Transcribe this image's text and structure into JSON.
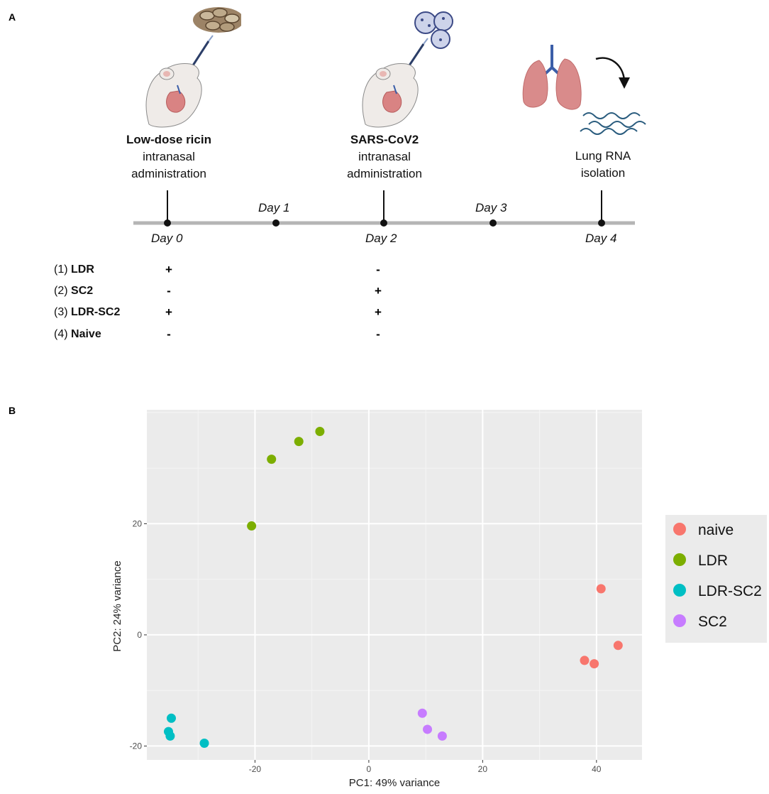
{
  "panel_a": {
    "label": "A",
    "steps": [
      {
        "title": "Low-dose ricin",
        "line1": "intranasal",
        "line2": "administration"
      },
      {
        "title": "SARS-CoV2",
        "line1": "intranasal",
        "line2": "administration"
      },
      {
        "title": "",
        "line1": "Lung RNA",
        "line2": "isolation"
      }
    ],
    "days": [
      "Day 0",
      "Day 1",
      "Day 2",
      "Day 3",
      "Day 4"
    ],
    "groups": [
      {
        "num": "(1)",
        "name": "LDR",
        "day0": "+",
        "day2": "-"
      },
      {
        "num": "(2)",
        "name": "SC2",
        "day0": "-",
        "day2": "+"
      },
      {
        "num": "(3)",
        "name": "LDR-SC2",
        "day0": "+",
        "day2": "+"
      },
      {
        "num": "(4)",
        "name": "Naive",
        "day0": "-",
        "day2": "-"
      }
    ],
    "illustrations": [
      "castor-beans",
      "mouse-intranasal",
      "sars-cov2-virions",
      "lungs",
      "rna-strands",
      "curved-arrow"
    ]
  },
  "panel_b": {
    "label": "B"
  },
  "chart_data": {
    "type": "scatter",
    "title": "",
    "xlabel": "PC1: 49% variance",
    "ylabel": "PC2: 24% variance",
    "xlim": [
      -39,
      48
    ],
    "ylim": [
      -22.5,
      40.5
    ],
    "xticks": [
      -20,
      0,
      20,
      40
    ],
    "yticks": [
      -20,
      0,
      20
    ],
    "grid": true,
    "legend_position": "right",
    "series": [
      {
        "name": "naive",
        "color": "#F8766D",
        "points": [
          [
            40.8,
            8.3
          ],
          [
            43.8,
            -1.9
          ],
          [
            37.9,
            -4.6
          ],
          [
            39.6,
            -5.2
          ]
        ]
      },
      {
        "name": "LDR",
        "color": "#7CAE00",
        "points": [
          [
            -8.6,
            36.6
          ],
          [
            -12.3,
            34.8
          ],
          [
            -17.1,
            31.6
          ],
          [
            -20.6,
            19.6
          ]
        ]
      },
      {
        "name": "LDR-SC2",
        "color": "#00BFC4",
        "points": [
          [
            -34.7,
            -15.0
          ],
          [
            -35.2,
            -17.4
          ],
          [
            -34.9,
            -18.2
          ],
          [
            -28.9,
            -19.5
          ]
        ]
      },
      {
        "name": "SC2",
        "color": "#C77CFF",
        "points": [
          [
            9.4,
            -14.1
          ],
          [
            10.3,
            -17.0
          ],
          [
            12.9,
            -18.2
          ]
        ]
      }
    ]
  }
}
